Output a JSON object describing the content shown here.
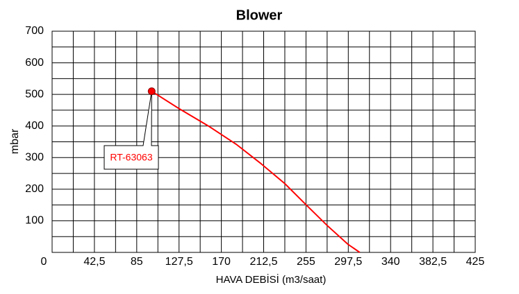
{
  "chart_data": {
    "type": "line",
    "title": "Blower",
    "x_label": "HAVA DEBİSİ (m3/saat)",
    "y_label": "mbar",
    "x": [
      100,
      127.5,
      157,
      185,
      209,
      234,
      255,
      276,
      297,
      309
    ],
    "series": [
      {
        "name": "RT-63063",
        "color": "#ff0000",
        "values": [
          510,
          455,
          400,
          342,
          283,
          217,
          151,
          86,
          26,
          0
        ]
      }
    ],
    "xlim": [
      0,
      425
    ],
    "xticks": [
      0,
      {
        "value": 42.5,
        "label": "42,5"
      },
      85,
      {
        "value": 127.5,
        "label": "127,5"
      },
      170,
      {
        "value": 212.5,
        "label": "212,5"
      },
      255,
      {
        "value": 297.5,
        "label": "297,5"
      },
      340,
      {
        "value": 382.5,
        "label": "382,5"
      },
      425
    ],
    "ylim": [
      0,
      700
    ],
    "yticks": [
      100,
      200,
      300,
      400,
      500,
      600,
      700
    ],
    "grid": true,
    "minor_grid": true,
    "first_point_marker": true
  }
}
